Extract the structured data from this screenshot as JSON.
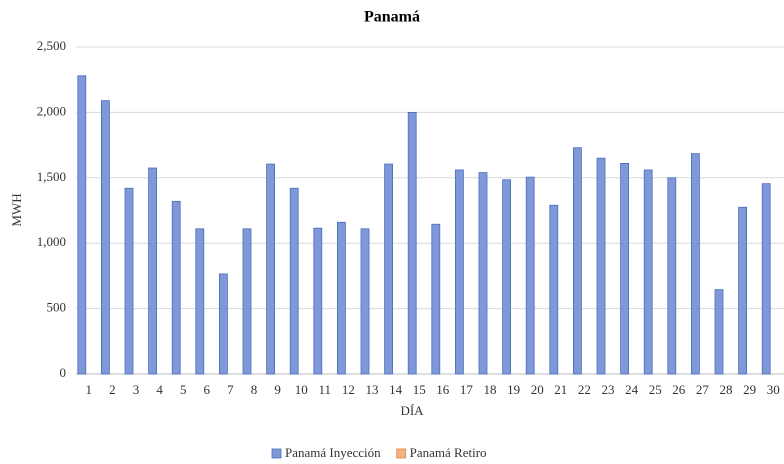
{
  "chart_data": {
    "type": "bar",
    "title": "Panamá",
    "x_label": "DÍA",
    "y_label": "MWH",
    "categories": [
      "1",
      "2",
      "3",
      "4",
      "5",
      "6",
      "7",
      "8",
      "9",
      "10",
      "11",
      "12",
      "13",
      "14",
      "15",
      "16",
      "17",
      "18",
      "19",
      "20",
      "21",
      "22",
      "23",
      "24",
      "25",
      "26",
      "27",
      "28",
      "29",
      "30"
    ],
    "series": [
      {
        "name": "Panamá Inyección",
        "color": "#7f98d8",
        "stroke": "#4a6cc0",
        "values": [
          2280,
          2090,
          1420,
          1575,
          1320,
          1110,
          765,
          1110,
          1605,
          1420,
          1115,
          1160,
          1110,
          1605,
          2000,
          1145,
          1560,
          1540,
          1485,
          1505,
          1290,
          1730,
          1650,
          1610,
          1560,
          1500,
          1685,
          645,
          1275,
          1455
        ]
      },
      {
        "name": "Panamá Retiro",
        "color": "#f4b183",
        "stroke": "#e08a4c",
        "values": [
          0,
          0,
          0,
          0,
          0,
          0,
          0,
          0,
          0,
          0,
          0,
          0,
          0,
          0,
          0,
          0,
          0,
          0,
          0,
          0,
          0,
          0,
          0,
          0,
          0,
          0,
          0,
          0,
          0,
          0
        ]
      }
    ],
    "ylim": [
      0,
      2500
    ],
    "yticks": [
      0,
      {
        "value": 500,
        "label": "500"
      },
      {
        "value": 1000,
        "label": "1,000"
      },
      {
        "value": 1500,
        "label": "1,500"
      },
      {
        "value": 2000,
        "label": "2,000"
      },
      {
        "value": 2500,
        "label": "2,500"
      }
    ],
    "grid": true
  }
}
